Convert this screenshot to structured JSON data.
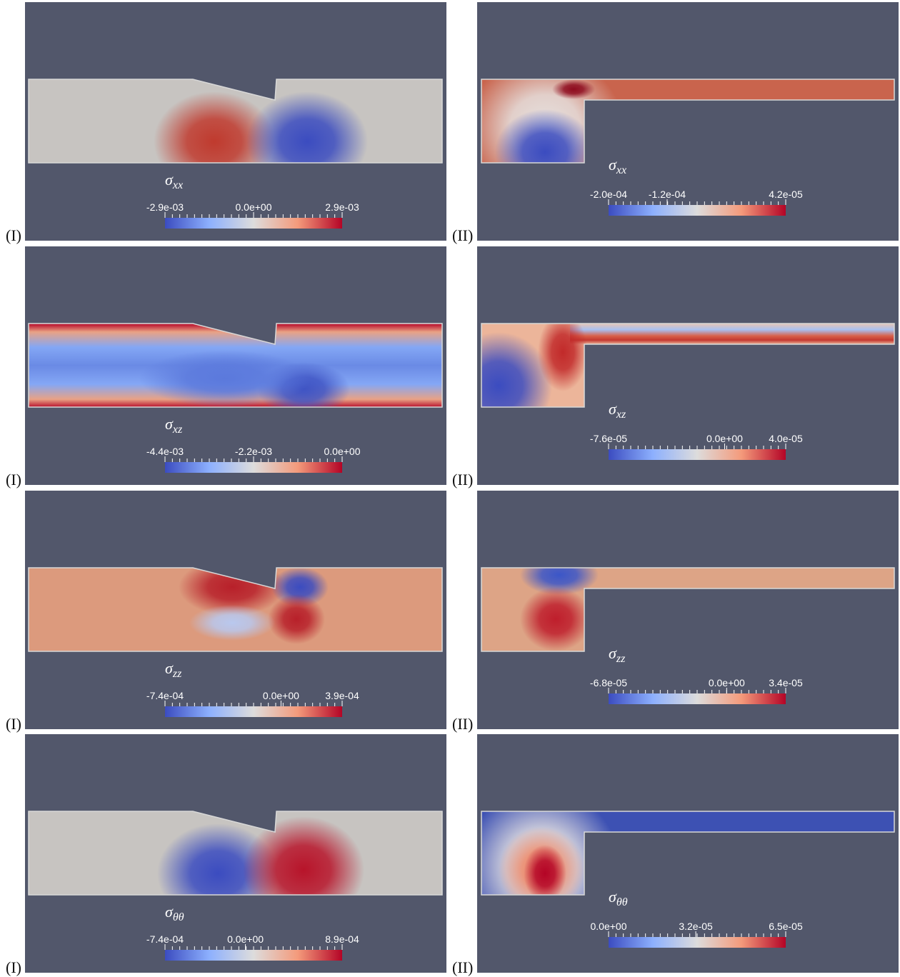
{
  "panels": [
    {
      "label": "(I)",
      "symbol": "σ",
      "subscript": "xx",
      "colorbar": [
        {
          "value": -0.0029,
          "label": "-2.9e-03"
        },
        {
          "value": 0,
          "label": "0.0e+00"
        },
        {
          "value": 0.0029,
          "label": "2.9e-03"
        }
      ]
    },
    {
      "label": "(II)",
      "symbol": "σ",
      "subscript": "xx",
      "colorbar": [
        {
          "value": -0.0002,
          "label": "-2.0e-04"
        },
        {
          "value": -0.00012,
          "label": "-1.2e-04"
        },
        {
          "value": 4.2e-05,
          "label": "4.2e-05"
        }
      ]
    },
    {
      "label": "(I)",
      "symbol": "σ",
      "subscript": "xz",
      "colorbar": [
        {
          "value": -0.0044,
          "label": "-4.4e-03"
        },
        {
          "value": -0.0022,
          "label": "-2.2e-03"
        },
        {
          "value": 0,
          "label": "0.0e+00"
        }
      ]
    },
    {
      "label": "(II)",
      "symbol": "σ",
      "subscript": "xz",
      "colorbar": [
        {
          "value": -7.6e-05,
          "label": "-7.6e-05"
        },
        {
          "value": 0,
          "label": "0.0e+00"
        },
        {
          "value": 4e-05,
          "label": "4.0e-05"
        }
      ]
    },
    {
      "label": "(I)",
      "symbol": "σ",
      "subscript": "zz",
      "colorbar": [
        {
          "value": -0.00074,
          "label": "-7.4e-04"
        },
        {
          "value": 0,
          "label": "0.0e+00"
        },
        {
          "value": 0.00039,
          "label": "3.9e-04"
        }
      ]
    },
    {
      "label": "(II)",
      "symbol": "σ",
      "subscript": "zz",
      "colorbar": [
        {
          "value": -6.8e-05,
          "label": "-6.8e-05"
        },
        {
          "value": 0,
          "label": "0.0e+00"
        },
        {
          "value": 3.4e-05,
          "label": "3.4e-05"
        }
      ]
    },
    {
      "label": "(I)",
      "symbol": "σ",
      "subscript": "θθ",
      "colorbar": [
        {
          "value": -0.00074,
          "label": "-7.4e-04"
        },
        {
          "value": 0,
          "label": "0.0e+00"
        },
        {
          "value": 0.00089,
          "label": "8.9e-04"
        }
      ]
    },
    {
      "label": "(II)",
      "symbol": "σ",
      "subscript": "θθ",
      "colorbar": [
        {
          "value": 0,
          "label": "0.0e+00"
        },
        {
          "value": 3.2e-05,
          "label": "3.2e-05"
        },
        {
          "value": 6.5e-05,
          "label": "6.5e-05"
        }
      ]
    }
  ]
}
